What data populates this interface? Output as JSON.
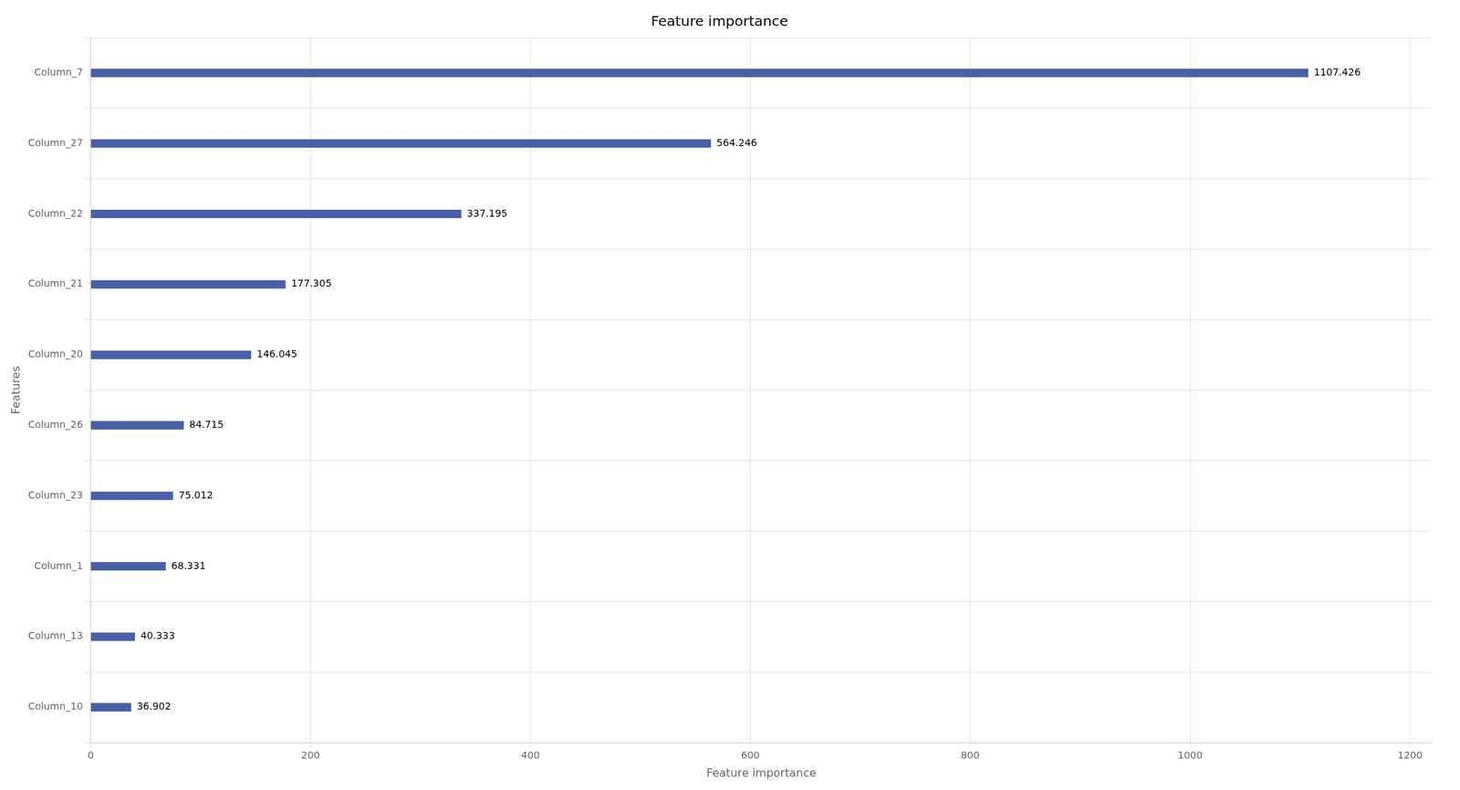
{
  "chart_data": {
    "type": "bar",
    "orientation": "horizontal",
    "title": "Feature importance",
    "xlabel": "Feature importance",
    "ylabel": "Features",
    "categories": [
      "Column_10",
      "Column_13",
      "Column_1",
      "Column_23",
      "Column_26",
      "Column_20",
      "Column_21",
      "Column_22",
      "Column_27",
      "Column_7"
    ],
    "values": [
      36.902,
      40.333,
      68.331,
      75.012,
      84.715,
      146.045,
      177.305,
      337.195,
      564.246,
      1107.426
    ],
    "color": "#4a5fa5",
    "xlim": [
      0,
      1220
    ],
    "xticks": [
      0,
      200,
      400,
      600,
      800,
      1000,
      1200
    ],
    "grid": true,
    "data_labels": true
  }
}
